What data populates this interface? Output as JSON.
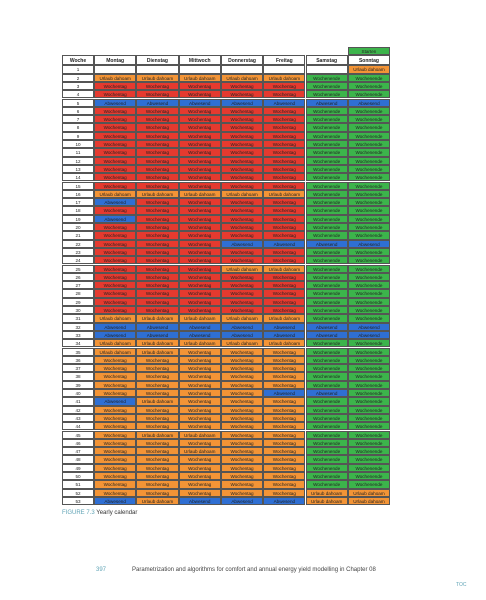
{
  "table": {
    "starter": "Starten",
    "header": [
      "Woche",
      "Montag",
      "Dienstag",
      "Mittwoch",
      "Donnerstag",
      "Freitag",
      "Samstag",
      "Sonntag"
    ],
    "styles": {
      "W": {
        "label": "Wochentag",
        "color": "#e53a2f"
      },
      "w": {
        "label": "Wochentag",
        "color": "#f39436"
      },
      "U": {
        "label": "Urlaub dahoam",
        "color": "#f39436"
      },
      "E": {
        "label": "Wochenende",
        "color": "#3cb44b"
      },
      "A": {
        "label": "Abwesend",
        "color": "#2f6fd3"
      }
    },
    "rows": [
      {
        "week": "1",
        "days": "------U"
      },
      {
        "week": "2",
        "days": "UUUUUEE"
      },
      {
        "week": "3",
        "days": "WWWWWEE"
      },
      {
        "week": "4",
        "days": "WWWWWEE"
      },
      {
        "week": "5",
        "days": "AAAAAAA"
      },
      {
        "week": "6",
        "days": "WWWWWEE"
      },
      {
        "week": "7",
        "days": "WWWWWEE"
      },
      {
        "week": "8",
        "days": "WWWWWEE"
      },
      {
        "week": "9",
        "days": "WWWWWEE"
      },
      {
        "week": "10",
        "days": "WWWWWEE"
      },
      {
        "week": "11",
        "days": "WWWWWEE"
      },
      {
        "week": "12",
        "days": "WWWWWEE"
      },
      {
        "week": "13",
        "days": "WWWWWEE"
      },
      {
        "week": "14",
        "days": "WWWWWEE"
      },
      {
        "week": "15",
        "days": "WWWWWEE"
      },
      {
        "week": "16",
        "days": "UUUUUEE"
      },
      {
        "week": "17",
        "days": "AWWWWEE"
      },
      {
        "week": "18",
        "days": "WWWWWEE"
      },
      {
        "week": "19",
        "days": "AWWWWEE"
      },
      {
        "week": "20",
        "days": "WWWWWEE"
      },
      {
        "week": "21",
        "days": "WWWWWEE"
      },
      {
        "week": "22",
        "days": "WWWAAAA"
      },
      {
        "week": "23",
        "days": "WWWWWEE"
      },
      {
        "week": "24",
        "days": "WWWWWEE"
      },
      {
        "week": "25",
        "days": "WWWUUEE"
      },
      {
        "week": "26",
        "days": "WWWWWEE"
      },
      {
        "week": "27",
        "days": "WWWWWEE"
      },
      {
        "week": "28",
        "days": "WWWWWEE"
      },
      {
        "week": "29",
        "days": "WWWWWEE"
      },
      {
        "week": "30",
        "days": "WWWWWEE"
      },
      {
        "week": "31",
        "days": "UUUUUEE"
      },
      {
        "week": "32",
        "days": "AAAAAAA"
      },
      {
        "week": "33",
        "days": "AAAAAAA"
      },
      {
        "week": "34",
        "days": "UUUUUEE"
      },
      {
        "week": "35",
        "days": "UUwwwEE"
      },
      {
        "week": "36",
        "days": "wwwwwEE"
      },
      {
        "week": "37",
        "days": "wwwwwEE"
      },
      {
        "week": "38",
        "days": "wwwwwEE"
      },
      {
        "week": "39",
        "days": "wwwwwEE"
      },
      {
        "week": "40",
        "days": "wwwwAAE"
      },
      {
        "week": "41",
        "days": "AUwwwEE"
      },
      {
        "week": "42",
        "days": "wwwwwEE"
      },
      {
        "week": "43",
        "days": "wwwwwEE"
      },
      {
        "week": "44",
        "days": "wwwwwEE"
      },
      {
        "week": "45",
        "days": "wUUwwEE"
      },
      {
        "week": "46",
        "days": "wwwwwEE"
      },
      {
        "week": "47",
        "days": "wwUwwEE"
      },
      {
        "week": "48",
        "days": "wwwwwEE"
      },
      {
        "week": "49",
        "days": "wwwwwEE"
      },
      {
        "week": "50",
        "days": "wwwwwEE"
      },
      {
        "week": "51",
        "days": "wwwwwEE"
      },
      {
        "week": "52",
        "days": "wwwwwUU"
      },
      {
        "week": "53",
        "days": "AUAAAUU"
      }
    ]
  },
  "caption": {
    "label": "FIGURE 7.3",
    "text": "Yearly calendar"
  },
  "footer": {
    "page": "397",
    "text": "Parametrization and algorithms for comfort and annual energy yield modelling in Chapter 08",
    "toc": "TOC"
  }
}
